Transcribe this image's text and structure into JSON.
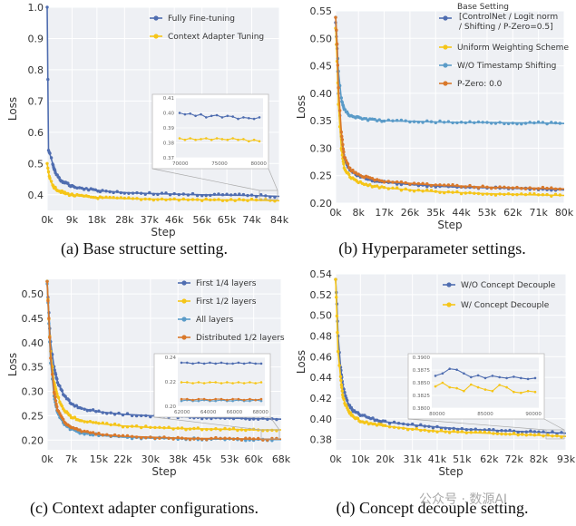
{
  "colors": {
    "blue": "#4f6db0",
    "yellow": "#f5c518",
    "lightblue": "#5a9bc8",
    "orange": "#d9782a",
    "panel_bg": "#eef0f4",
    "grid": "#ffffff"
  },
  "captions": {
    "a": "(a) Base structure setting.",
    "b": "(b) Hyperparameter settings.",
    "c": "(c) Context adapter configurations.",
    "d": "(d) Concept decouple setting."
  },
  "watermark": "公众号 · 数源AI",
  "chart_data": [
    {
      "id": "a",
      "type": "line",
      "xlabel": "Step",
      "ylabel": "Loss",
      "xmax": 84,
      "ylim": [
        0.35,
        1.0
      ],
      "yticks": [
        0.4,
        0.5,
        0.6,
        0.7,
        0.8,
        0.9,
        1.0
      ],
      "ytick_labels": [
        "0.4",
        "0.5",
        "0.6",
        "0.7",
        "0.8",
        "0.9",
        "1.0"
      ],
      "xticks": [
        0,
        9,
        18,
        28,
        37,
        46,
        56,
        65,
        74,
        84
      ],
      "xtick_labels": [
        "0k",
        "9k",
        "18k",
        "28k",
        "37k",
        "46k",
        "56k",
        "65k",
        "74k",
        "84k"
      ],
      "series": [
        {
          "name": "Fully Fine-tuning",
          "color": "#4f6db0",
          "x": [
            0,
            0.5,
            1,
            2,
            3,
            5,
            7,
            10,
            15,
            20,
            28,
            37,
            46,
            56,
            65,
            74,
            84
          ],
          "y": [
            1.0,
            0.54,
            0.53,
            0.5,
            0.47,
            0.445,
            0.435,
            0.425,
            0.418,
            0.412,
            0.407,
            0.404,
            0.402,
            0.4,
            0.399,
            0.398,
            0.395
          ]
        },
        {
          "name": "Context Adapter Tuning",
          "color": "#f5c518",
          "x": [
            0,
            0.5,
            1,
            2,
            3,
            5,
            7,
            10,
            15,
            20,
            28,
            37,
            46,
            56,
            65,
            74,
            84
          ],
          "y": [
            0.5,
            0.47,
            0.45,
            0.43,
            0.42,
            0.41,
            0.403,
            0.398,
            0.393,
            0.39,
            0.388,
            0.386,
            0.385,
            0.384,
            0.383,
            0.383,
            0.381
          ]
        }
      ],
      "inset": {
        "xticks": [
          "70000",
          "75000",
          "80000"
        ],
        "yticks": [
          "0.37",
          "0.38",
          "0.39",
          "0.40",
          "0.41"
        ],
        "ylim": [
          0.37,
          0.41
        ],
        "series": [
          {
            "color": "#4f6db0",
            "y": [
              0.4,
              0.399,
              0.3995,
              0.398,
              0.399,
              0.397,
              0.398,
              0.3985,
              0.397,
              0.398,
              0.3975,
              0.396,
              0.397,
              0.3965,
              0.396,
              0.397
            ]
          },
          {
            "color": "#f5c518",
            "y": [
              0.383,
              0.382,
              0.383,
              0.382,
              0.3825,
              0.383,
              0.382,
              0.383,
              0.3825,
              0.382,
              0.383,
              0.382,
              0.3825,
              0.381,
              0.382,
              0.381
            ]
          }
        ]
      }
    },
    {
      "id": "b",
      "type": "line",
      "xlabel": "Step",
      "ylabel": "Loss",
      "xmax": 80,
      "ylim": [
        0.2,
        0.55
      ],
      "yticks": [
        0.2,
        0.25,
        0.3,
        0.35,
        0.4,
        0.45,
        0.5,
        0.55
      ],
      "ytick_labels": [
        "0.20",
        "0.25",
        "0.30",
        "0.35",
        "0.40",
        "0.45",
        "0.50",
        "0.55"
      ],
      "xticks": [
        0,
        8,
        17,
        26,
        35,
        44,
        53,
        62,
        71,
        80
      ],
      "xtick_labels": [
        "0k",
        "8k",
        "17k",
        "26k",
        "35k",
        "44k",
        "53k",
        "62k",
        "71k",
        "80k"
      ],
      "series": [
        {
          "name": "Base Setting [ControlNet / Logit norm / Shifting / P-Zero=0.5]",
          "color": "#4f6db0",
          "x": [
            0,
            0.5,
            1,
            2,
            3,
            5,
            8,
            12,
            17,
            26,
            35,
            44,
            53,
            62,
            71,
            80
          ],
          "y": [
            0.53,
            0.48,
            0.4,
            0.32,
            0.28,
            0.26,
            0.25,
            0.242,
            0.238,
            0.234,
            0.231,
            0.229,
            0.228,
            0.227,
            0.226,
            0.224
          ]
        },
        {
          "name": "Uniform Weighting Scheme",
          "color": "#f5c518",
          "x": [
            0,
            0.5,
            1,
            2,
            3,
            5,
            8,
            12,
            17,
            26,
            35,
            44,
            53,
            62,
            71,
            80
          ],
          "y": [
            0.52,
            0.46,
            0.38,
            0.3,
            0.265,
            0.248,
            0.238,
            0.232,
            0.228,
            0.224,
            0.221,
            0.219,
            0.217,
            0.216,
            0.215,
            0.214
          ]
        },
        {
          "name": "W/O Timestamp Shifting",
          "color": "#5a9bc8",
          "x": [
            0,
            0.5,
            1,
            2,
            3,
            5,
            8,
            12,
            17,
            26,
            35,
            44,
            53,
            62,
            71,
            80
          ],
          "y": [
            0.54,
            0.49,
            0.44,
            0.39,
            0.37,
            0.36,
            0.355,
            0.352,
            0.35,
            0.349,
            0.348,
            0.347,
            0.347,
            0.346,
            0.346,
            0.345
          ]
        },
        {
          "name": "P-Zero: 0.0",
          "color": "#d9782a",
          "x": [
            0,
            0.5,
            1,
            2,
            3,
            5,
            8,
            12,
            17,
            26,
            35,
            44,
            53,
            62,
            71,
            80
          ],
          "y": [
            0.54,
            0.49,
            0.41,
            0.33,
            0.285,
            0.262,
            0.252,
            0.245,
            0.24,
            0.236,
            0.233,
            0.231,
            0.229,
            0.228,
            0.227,
            0.226
          ]
        }
      ]
    },
    {
      "id": "c",
      "type": "line",
      "xlabel": "Step",
      "ylabel": "Loss",
      "xmax": 68,
      "ylim": [
        0.18,
        0.53
      ],
      "yticks": [
        0.2,
        0.25,
        0.3,
        0.35,
        0.4,
        0.45,
        0.5
      ],
      "ytick_labels": [
        "0.20",
        "0.25",
        "0.30",
        "0.35",
        "0.40",
        "0.45",
        "0.50"
      ],
      "xticks": [
        0,
        7,
        15,
        22,
        30,
        38,
        45,
        53,
        60,
        68
      ],
      "xtick_labels": [
        "0k",
        "7k",
        "15k",
        "22k",
        "30k",
        "38k",
        "45k",
        "53k",
        "60k",
        "68k"
      ],
      "series": [
        {
          "name": "First 1/4 layers",
          "color": "#4f6db0",
          "x": [
            0,
            0.5,
            1,
            2,
            3,
            5,
            7,
            10,
            15,
            22,
            30,
            38,
            45,
            53,
            60,
            68
          ],
          "y": [
            0.525,
            0.46,
            0.4,
            0.35,
            0.32,
            0.29,
            0.275,
            0.265,
            0.258,
            0.253,
            0.25,
            0.248,
            0.246,
            0.245,
            0.244,
            0.243
          ]
        },
        {
          "name": "First 1/2 layers",
          "color": "#f5c518",
          "x": [
            0,
            0.5,
            1,
            2,
            3,
            5,
            7,
            10,
            15,
            22,
            30,
            38,
            45,
            53,
            60,
            68
          ],
          "y": [
            0.525,
            0.45,
            0.38,
            0.32,
            0.29,
            0.26,
            0.248,
            0.24,
            0.234,
            0.229,
            0.226,
            0.224,
            0.223,
            0.222,
            0.221,
            0.221
          ]
        },
        {
          "name": "All layers",
          "color": "#5a9bc8",
          "x": [
            0,
            0.5,
            1,
            2,
            3,
            5,
            7,
            10,
            15,
            22,
            30,
            38,
            45,
            53,
            60,
            68
          ],
          "y": [
            0.52,
            0.44,
            0.36,
            0.29,
            0.255,
            0.232,
            0.222,
            0.215,
            0.21,
            0.206,
            0.204,
            0.203,
            0.202,
            0.202,
            0.201,
            0.201
          ]
        },
        {
          "name": "Distributed 1/2 layers",
          "color": "#d9782a",
          "x": [
            0,
            0.5,
            1,
            2,
            3,
            5,
            7,
            10,
            15,
            22,
            30,
            38,
            45,
            53,
            60,
            68
          ],
          "y": [
            0.525,
            0.45,
            0.37,
            0.3,
            0.262,
            0.238,
            0.226,
            0.218,
            0.212,
            0.208,
            0.206,
            0.204,
            0.203,
            0.203,
            0.202,
            0.202
          ]
        }
      ],
      "inset": {
        "xticks": [
          "62000",
          "64000",
          "66000",
          "68000"
        ],
        "yticks": [
          "0.20",
          "0.22",
          "0.24"
        ],
        "ylim": [
          0.195,
          0.25
        ],
        "series": [
          {
            "color": "#4f6db0",
            "y": [
              0.244,
              0.244,
              0.243,
              0.244,
              0.243,
              0.244,
              0.243,
              0.244,
              0.243,
              0.243,
              0.244,
              0.243,
              0.244,
              0.243,
              0.243
            ]
          },
          {
            "color": "#f5c518",
            "y": [
              0.222,
              0.222,
              0.221,
              0.222,
              0.221,
              0.222,
              0.222,
              0.221,
              0.222,
              0.221,
              0.222,
              0.221,
              0.222,
              0.221,
              0.222
            ]
          },
          {
            "color": "#5a9bc8",
            "y": [
              0.201,
              0.202,
              0.201,
              0.201,
              0.202,
              0.201,
              0.201,
              0.202,
              0.201,
              0.201,
              0.202,
              0.201,
              0.201,
              0.202,
              0.201
            ]
          },
          {
            "color": "#d9782a",
            "y": [
              0.203,
              0.203,
              0.202,
              0.203,
              0.203,
              0.202,
              0.203,
              0.203,
              0.202,
              0.203,
              0.203,
              0.202,
              0.203,
              0.202,
              0.203
            ]
          }
        ]
      }
    },
    {
      "id": "d",
      "type": "line",
      "xlabel": "Step",
      "ylabel": "Loss",
      "xmax": 93,
      "ylim": [
        0.37,
        0.54
      ],
      "yticks": [
        0.38,
        0.4,
        0.42,
        0.44,
        0.46,
        0.48,
        0.5,
        0.52,
        0.54
      ],
      "ytick_labels": [
        "0.38",
        "0.40",
        "0.42",
        "0.44",
        "0.46",
        "0.48",
        "0.50",
        "0.52",
        "0.54"
      ],
      "xticks": [
        0,
        10,
        20,
        31,
        41,
        51,
        62,
        72,
        82,
        93
      ],
      "xtick_labels": [
        "0k",
        "10k",
        "20k",
        "31k",
        "41k",
        "51k",
        "62k",
        "72k",
        "82k",
        "93k"
      ],
      "series": [
        {
          "name": "W/O Concept Decouple",
          "color": "#4f6db0",
          "x": [
            0,
            0.5,
            1,
            2,
            3,
            5,
            7,
            10,
            15,
            20,
            31,
            41,
            51,
            62,
            72,
            82,
            93
          ],
          "y": [
            0.535,
            0.51,
            0.48,
            0.45,
            0.43,
            0.415,
            0.408,
            0.404,
            0.4,
            0.397,
            0.394,
            0.392,
            0.39,
            0.389,
            0.388,
            0.387,
            0.386
          ]
        },
        {
          "name": "W/ Concept Decouple",
          "color": "#f5c518",
          "x": [
            0,
            0.5,
            1,
            2,
            3,
            5,
            7,
            10,
            15,
            20,
            31,
            41,
            51,
            62,
            72,
            82,
            93
          ],
          "y": [
            0.535,
            0.5,
            0.465,
            0.44,
            0.42,
            0.408,
            0.402,
            0.398,
            0.395,
            0.393,
            0.39,
            0.388,
            0.387,
            0.386,
            0.385,
            0.384,
            0.383
          ]
        }
      ],
      "inset": {
        "xticks": [
          "80000",
          "85000",
          "90000"
        ],
        "yticks": [
          "0.3800",
          "0.3825",
          "0.3850",
          "0.3875",
          "0.3900"
        ],
        "ylim": [
          0.3795,
          0.3905
        ],
        "series": [
          {
            "color": "#4f6db0",
            "y": [
              0.3865,
              0.387,
              0.388,
              0.3878,
              0.387,
              0.3862,
              0.3866,
              0.386,
              0.3865,
              0.3862,
              0.386,
              0.3863,
              0.386,
              0.3858,
              0.386
            ]
          },
          {
            "color": "#f5c518",
            "y": [
              0.3842,
              0.385,
              0.384,
              0.3838,
              0.3832,
              0.3846,
              0.384,
              0.3835,
              0.3832,
              0.3845,
              0.384,
              0.383,
              0.3828,
              0.3832,
              0.383
            ]
          }
        ]
      }
    }
  ]
}
